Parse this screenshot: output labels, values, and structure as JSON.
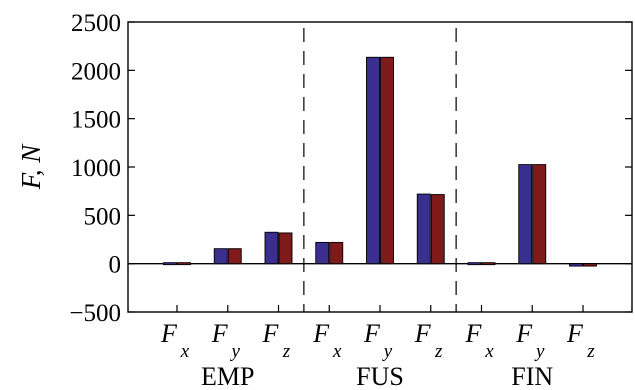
{
  "chart_data": {
    "type": "bar",
    "ylabel": "F, N",
    "ylim": [
      -500,
      2500
    ],
    "yticks": [
      -500,
      0,
      500,
      1000,
      1500,
      2000,
      2500
    ],
    "ytick_labels": [
      "−500",
      "0",
      "500",
      "1000",
      "1500",
      "2000",
      "2500"
    ],
    "grid": false,
    "categories": [
      {
        "main": "F",
        "sub": "x"
      },
      {
        "main": "F",
        "sub": "y"
      },
      {
        "main": "F",
        "sub": "z"
      },
      {
        "main": "F",
        "sub": "x"
      },
      {
        "main": "F",
        "sub": "y"
      },
      {
        "main": "F",
        "sub": "z"
      },
      {
        "main": "F",
        "sub": "x"
      },
      {
        "main": "F",
        "sub": "y"
      },
      {
        "main": "F",
        "sub": "z"
      }
    ],
    "groups": [
      {
        "label": "EMP",
        "category_indices": [
          0,
          1,
          2
        ]
      },
      {
        "label": "FUS",
        "category_indices": [
          3,
          4,
          5
        ]
      },
      {
        "label": "FIN",
        "category_indices": [
          6,
          7,
          8
        ]
      }
    ],
    "series": [
      {
        "color": "#3a2f8f",
        "values": [
          -5,
          155,
          325,
          220,
          2135,
          720,
          5,
          1025,
          -25
        ]
      },
      {
        "color": "#7e1a1a",
        "values": [
          -5,
          155,
          318,
          220,
          2135,
          715,
          5,
          1025,
          -25
        ]
      }
    ]
  }
}
